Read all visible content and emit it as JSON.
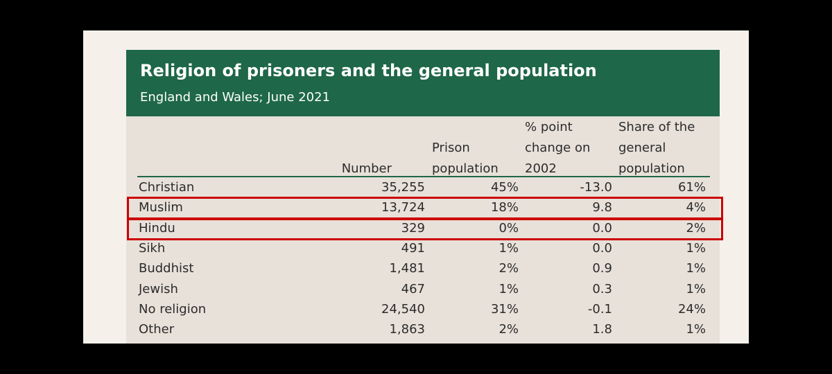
{
  "table": {
    "title": "Religion of prisoners and the general population",
    "subtitle": "England and Wales; June 2021",
    "columns": [
      {
        "lines": [
          "Number"
        ]
      },
      {
        "lines": [
          "Prison",
          "population"
        ]
      },
      {
        "lines": [
          "% point",
          "change on",
          "2002"
        ]
      },
      {
        "lines": [
          "Share of the",
          "general",
          "population"
        ]
      }
    ],
    "rows": [
      {
        "religion": "Christian",
        "number": "35,255",
        "prison": "45%",
        "change": "-13.0",
        "share": "61%"
      },
      {
        "religion": "Muslim",
        "number": "13,724",
        "prison": "18%",
        "change": "9.8",
        "share": "4%"
      },
      {
        "religion": "Hindu",
        "number": "329",
        "prison": "0%",
        "change": "0.0",
        "share": "2%"
      },
      {
        "religion": "Sikh",
        "number": "491",
        "prison": "1%",
        "change": "0.0",
        "share": "1%"
      },
      {
        "religion": "Buddhist",
        "number": "1,481",
        "prison": "2%",
        "change": "0.9",
        "share": "1%"
      },
      {
        "religion": "Jewish",
        "number": "467",
        "prison": "1%",
        "change": "0.3",
        "share": "1%"
      },
      {
        "religion": "No religion",
        "number": "24,540",
        "prison": "31%",
        "change": "-0.1",
        "share": "24%"
      },
      {
        "religion": "Other",
        "number": "1,863",
        "prison": "2%",
        "change": "1.8",
        "share": "1%"
      }
    ]
  },
  "highlighted_rows": [
    "Muslim",
    "Hindu"
  ],
  "colors": {
    "header_green": "#1e6748",
    "table_bg": "#e8e1d9",
    "highlight_red": "#cc0000"
  }
}
